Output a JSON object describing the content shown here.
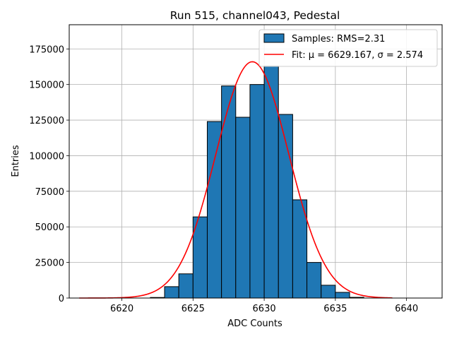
{
  "chart_data": {
    "type": "bar",
    "title": "Run 515, channel043, Pedestal",
    "xlabel": "ADC Counts",
    "ylabel": "Entries",
    "xlim": [
      6616.3,
      6642.5
    ],
    "ylim": [
      0,
      192000
    ],
    "xticks": [
      6620,
      6625,
      6630,
      6635,
      6640
    ],
    "yticks": [
      0,
      25000,
      50000,
      75000,
      100000,
      125000,
      150000,
      175000
    ],
    "grid": true,
    "legend": {
      "placement": "top-right"
    },
    "bar_color": "#1f77b4",
    "fit_color": "#ff0000",
    "histogram": {
      "name": "Samples: RMS=2.31",
      "bin_width": 1,
      "bins": [
        {
          "start": 6622,
          "value": 400
        },
        {
          "start": 6623,
          "value": 8000
        },
        {
          "start": 6624,
          "value": 17000
        },
        {
          "start": 6625,
          "value": 57000
        },
        {
          "start": 6626,
          "value": 124000
        },
        {
          "start": 6627,
          "value": 149000
        },
        {
          "start": 6628,
          "value": 127000
        },
        {
          "start": 6629,
          "value": 150000
        },
        {
          "start": 6630,
          "value": 163000
        },
        {
          "start": 6631,
          "value": 129000
        },
        {
          "start": 6632,
          "value": 69000
        },
        {
          "start": 6633,
          "value": 25000
        },
        {
          "start": 6634,
          "value": 9000
        },
        {
          "start": 6635,
          "value": 4000
        },
        {
          "start": 6636,
          "value": 500
        }
      ]
    },
    "fit": {
      "name": "Fit: μ = 6629.167, σ = 2.574",
      "mu": 6629.167,
      "sigma": 2.574,
      "amplitude": 166000,
      "x_range": [
        6617,
        6639
      ]
    }
  }
}
